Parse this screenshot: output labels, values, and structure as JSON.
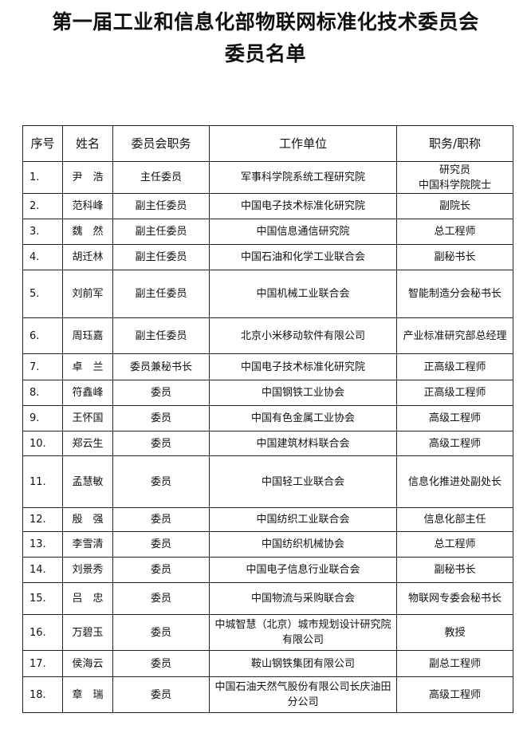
{
  "title_line1": "第一届工业和信息化部物联网标准化技术委员会",
  "title_line2": "委员名单",
  "table": {
    "headers": [
      "序号",
      "姓名",
      "委员会职务",
      "工作单位",
      "职务/职称"
    ],
    "rows": [
      [
        "1.",
        "尹　浩",
        "主任委员",
        "军事科学院系统工程研究院",
        "研究员\n中国科学院院士"
      ],
      [
        "2.",
        "范科峰",
        "副主任委员",
        "中国电子技术标准化研究院",
        "副院长"
      ],
      [
        "3.",
        "魏　然",
        "副主任委员",
        "中国信息通信研究院",
        "总工程师"
      ],
      [
        "4.",
        "胡迁林",
        "副主任委员",
        "中国石油和化学工业联合会",
        "副秘书长"
      ],
      [
        "5.",
        "刘前军",
        "副主任委员",
        "中国机械工业联合会",
        "智能制造分会秘书长"
      ],
      [
        "6.",
        "周珏嘉",
        "副主任委员",
        "北京小米移动软件有限公司",
        "产业标准研究部总经理"
      ],
      [
        "7.",
        "卓　兰",
        "委员兼秘书长",
        "中国电子技术标准化研究院",
        "正高级工程师"
      ],
      [
        "8.",
        "符鑫峰",
        "委员",
        "中国钢铁工业协会",
        "正高级工程师"
      ],
      [
        "9.",
        "王怀国",
        "委员",
        "中国有色金属工业协会",
        "高级工程师"
      ],
      [
        "10.",
        "郑云生",
        "委员",
        "中国建筑材料联合会",
        "高级工程师"
      ],
      [
        "11.",
        "孟慧敏",
        "委员",
        "中国轻工业联合会",
        "信息化推进处副处长"
      ],
      [
        "12.",
        "殷　强",
        "委员",
        "中国纺织工业联合会",
        "信息化部主任"
      ],
      [
        "13.",
        "李雪清",
        "委员",
        "中国纺织机械协会",
        "总工程师"
      ],
      [
        "14.",
        "刘景秀",
        "委员",
        "中国电子信息行业联合会",
        "副秘书长"
      ],
      [
        "15.",
        "吕　忠",
        "委员",
        "中国物流与采购联合会",
        "物联网专委会秘书长"
      ],
      [
        "16.",
        "万碧玉",
        "委员",
        "中城智慧（北京）城市规划设计研究院有限公司",
        "教授"
      ],
      [
        "17.",
        "侯海云",
        "委员",
        "鞍山钢铁集团有限公司",
        "副总工程师"
      ],
      [
        "18.",
        "章　瑞",
        "委员",
        "中国石油天然气股份有限公司长庆油田分公司",
        "高级工程师"
      ]
    ]
  }
}
